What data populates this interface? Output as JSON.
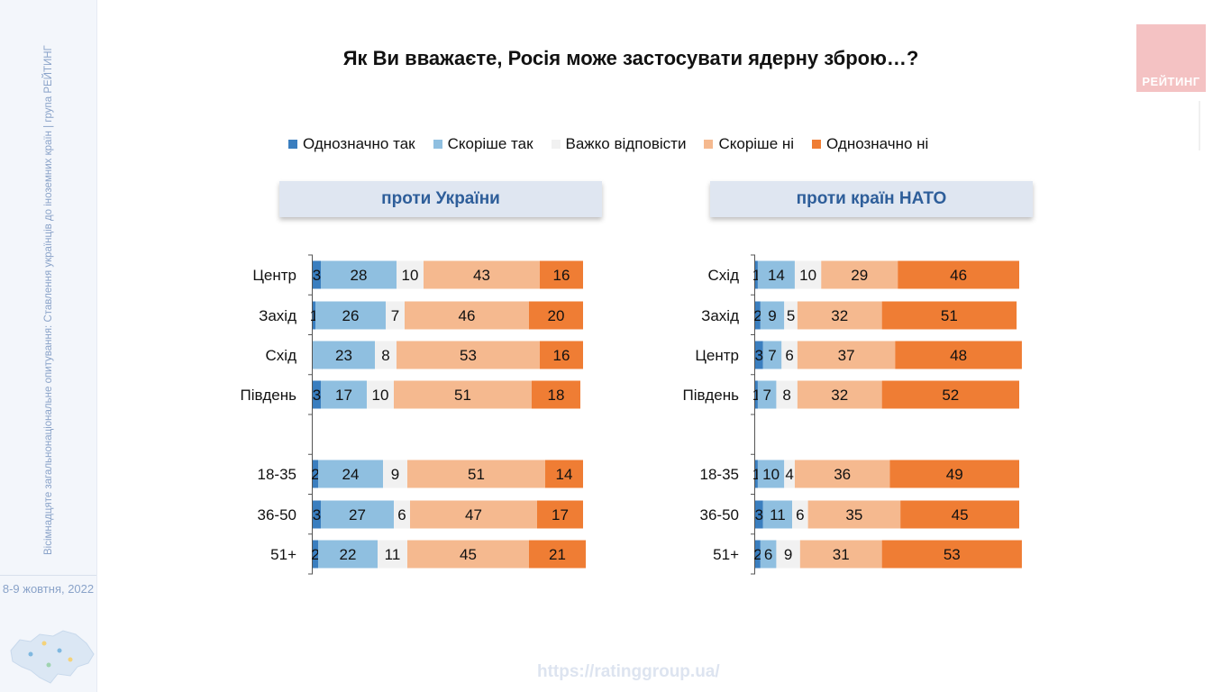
{
  "title": "Як Ви вважаєте, Росія може застосувати ядерну зброю…?",
  "logo_text": "РЕЙТИНГ",
  "sidebar": {
    "vertical_text": "Вісімнадцяте загальнонаціональне опитування: Ставлення українців до іноземних країн | група РЕЙТИНГ",
    "date": "8-9 жовтня, 2022"
  },
  "footer_url": "https://ratinggroup.ua/",
  "legend": [
    {
      "label": "Однозначно так",
      "color": "#3a7ebf"
    },
    {
      "label": "Скоріше так",
      "color": "#8fbfe0"
    },
    {
      "label": "Важко відповісти",
      "color": "#f1f1f1"
    },
    {
      "label": "Скоріше ні",
      "color": "#f5b98f"
    },
    {
      "label": "Однозначно ні",
      "color": "#ef7d34"
    }
  ],
  "chart_data": [
    {
      "type": "bar",
      "stacked": true,
      "orientation": "horizontal",
      "title": "проти України",
      "categories": [
        "Центр",
        "Захід",
        "Схід",
        "Південь",
        "",
        "18-35",
        "36-50",
        "51+"
      ],
      "series": [
        {
          "name": "Однозначно так",
          "values": [
            3,
            1,
            0,
            3,
            null,
            2,
            3,
            2
          ]
        },
        {
          "name": "Скоріше так",
          "values": [
            28,
            26,
            23,
            17,
            null,
            24,
            27,
            22
          ]
        },
        {
          "name": "Важко відповісти",
          "values": [
            10,
            7,
            8,
            10,
            null,
            9,
            6,
            11
          ]
        },
        {
          "name": "Скоріше ні",
          "values": [
            43,
            46,
            53,
            51,
            null,
            51,
            47,
            45
          ]
        },
        {
          "name": "Однозначно ні",
          "values": [
            16,
            20,
            16,
            18,
            null,
            14,
            17,
            21
          ]
        }
      ],
      "xlim": [
        0,
        100
      ]
    },
    {
      "type": "bar",
      "stacked": true,
      "orientation": "horizontal",
      "title": "проти країн НАТО",
      "categories": [
        "Схід",
        "Захід",
        "Центр",
        "Південь",
        "",
        "18-35",
        "36-50",
        "51+"
      ],
      "series": [
        {
          "name": "Однозначно так",
          "values": [
            1,
            2,
            3,
            1,
            null,
            1,
            3,
            2
          ]
        },
        {
          "name": "Скоріше так",
          "values": [
            14,
            9,
            7,
            7,
            null,
            10,
            11,
            6
          ]
        },
        {
          "name": "Важко відповісти",
          "values": [
            10,
            5,
            6,
            8,
            null,
            4,
            6,
            9
          ]
        },
        {
          "name": "Скоріше ні",
          "values": [
            29,
            32,
            37,
            32,
            null,
            36,
            35,
            31
          ]
        },
        {
          "name": "Однозначно ні",
          "values": [
            46,
            51,
            48,
            52,
            null,
            49,
            45,
            53
          ]
        }
      ],
      "xlim": [
        0,
        100
      ]
    }
  ]
}
